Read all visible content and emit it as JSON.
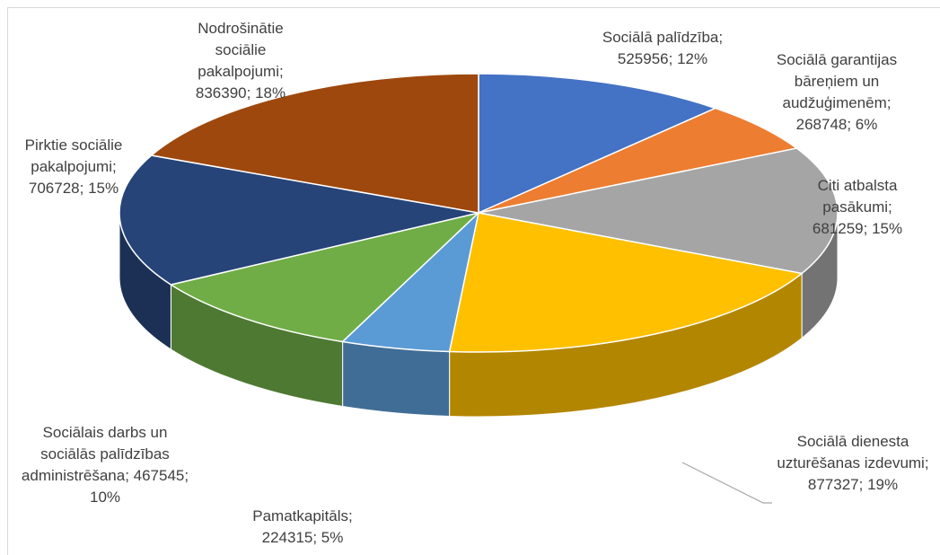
{
  "chart_data": {
    "type": "pie",
    "labels": [
      "Sociālā palīdzība; 525956; 12%",
      "Sociālā garantijas bāreņiem un audžuģimenēm; 268748; 6%",
      "Citi atbalsta pasākumi; 681259; 15%",
      "Sociālā dienesta uzturēšanas izdevumi; 877327; 19%",
      "Pamatkapitāls; 224315; 5%",
      "Sociālais darbs un sociālās palīdzības administrēšana; 467545; 10%",
      "Pirktie sociālie pakalpojumi; 706728; 15%",
      "Nodrošinātie sociālie pakalpojumi; 836390; 18%"
    ],
    "values": [
      525956,
      268748,
      681259,
      877327,
      224315,
      467545,
      706728,
      836390
    ],
    "colors": [
      "#4472c4",
      "#ed7d31",
      "#a5a5a5",
      "#ffc000",
      "#5b9bd5",
      "#70ad47",
      "#264478",
      "#9e480e"
    ]
  }
}
